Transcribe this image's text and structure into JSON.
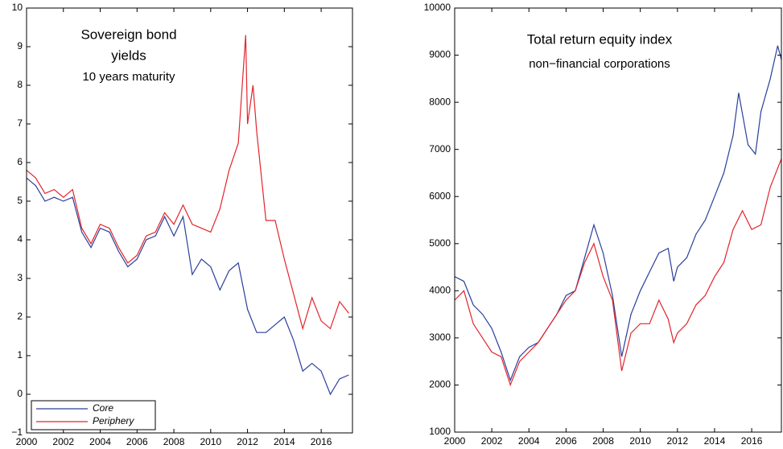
{
  "chart_data": [
    {
      "type": "line",
      "title": [
        "Sovereign bond",
        "yields",
        "10 years maturity"
      ],
      "xlim": [
        2000,
        2017.7
      ],
      "xticks": [
        2000,
        2002,
        2004,
        2006,
        2008,
        2010,
        2012,
        2014,
        2016
      ],
      "ylim": [
        -1,
        10
      ],
      "yticks": [
        {
          "value": -1,
          "label": "−1"
        },
        0,
        1,
        2,
        3,
        4,
        5,
        6,
        7,
        8,
        9,
        10
      ],
      "legend": "lower left",
      "series": [
        {
          "name": "Core",
          "color": "#2a3f9a",
          "x": [
            2000,
            2000.5,
            2001,
            2001.5,
            2002,
            2002.5,
            2003,
            2003.5,
            2004,
            2004.5,
            2005,
            2005.5,
            2006,
            2006.5,
            2007,
            2007.5,
            2008,
            2008.5,
            2009,
            2009.5,
            2010,
            2010.5,
            2011,
            2011.5,
            2012,
            2012.5,
            2013,
            2013.5,
            2014,
            2014.5,
            2015,
            2015.5,
            2016,
            2016.5,
            2017,
            2017.5
          ],
          "values": [
            5.6,
            5.4,
            5.0,
            5.1,
            5.0,
            5.1,
            4.2,
            3.8,
            4.3,
            4.2,
            3.7,
            3.3,
            3.5,
            4.0,
            4.1,
            4.6,
            4.1,
            4.6,
            3.1,
            3.5,
            3.3,
            2.7,
            3.2,
            3.4,
            2.2,
            1.6,
            1.6,
            1.8,
            2.0,
            1.4,
            0.6,
            0.8,
            0.6,
            0.0,
            0.4,
            0.5
          ]
        },
        {
          "name": "Periphery",
          "color": "#e3242b",
          "x": [
            2000,
            2000.5,
            2001,
            2001.5,
            2002,
            2002.5,
            2003,
            2003.5,
            2004,
            2004.5,
            2005,
            2005.5,
            2006,
            2006.5,
            2007,
            2007.5,
            2008,
            2008.5,
            2009,
            2009.5,
            2010,
            2010.5,
            2011,
            2011.5,
            2011.9,
            2012,
            2012.3,
            2012.5,
            2013,
            2013.5,
            2014,
            2014.5,
            2015,
            2015.5,
            2016,
            2016.5,
            2017,
            2017.5
          ],
          "values": [
            5.8,
            5.6,
            5.2,
            5.3,
            5.1,
            5.3,
            4.3,
            3.9,
            4.4,
            4.3,
            3.8,
            3.4,
            3.6,
            4.1,
            4.2,
            4.7,
            4.4,
            4.9,
            4.4,
            4.3,
            4.2,
            4.8,
            5.8,
            6.5,
            9.3,
            7.0,
            8.0,
            6.8,
            4.5,
            4.5,
            3.5,
            2.6,
            1.7,
            2.5,
            1.9,
            1.7,
            2.4,
            2.1
          ]
        }
      ]
    },
    {
      "type": "line",
      "title": "Total return equity index",
      "subtitle": "non−financial corporations",
      "xlim": [
        2000,
        2017.6
      ],
      "xticks": [
        2000,
        2002,
        2004,
        2006,
        2008,
        2010,
        2012,
        2014,
        2016
      ],
      "ylim": [
        1000,
        10000
      ],
      "yticks": [
        1000,
        2000,
        3000,
        4000,
        5000,
        6000,
        7000,
        8000,
        9000,
        10000
      ],
      "series": [
        {
          "color": "#2a3f9a",
          "x": [
            2000,
            2000.5,
            2001,
            2001.5,
            2002,
            2002.5,
            2003,
            2003.5,
            2004,
            2004.5,
            2005,
            2005.5,
            2006,
            2006.5,
            2007,
            2007.5,
            2008,
            2008.5,
            2009,
            2009.5,
            2010,
            2010.5,
            2011,
            2011.5,
            2011.8,
            2012,
            2012.5,
            2013,
            2013.5,
            2014,
            2014.5,
            2015,
            2015.3,
            2015.8,
            2016.2,
            2016.5,
            2017,
            2017.4,
            2017.6
          ],
          "values": [
            4300,
            4200,
            3700,
            3500,
            3200,
            2700,
            2100,
            2600,
            2800,
            2900,
            3200,
            3500,
            3900,
            4000,
            4700,
            5400,
            4800,
            3900,
            2600,
            3500,
            4000,
            4400,
            4800,
            4900,
            4200,
            4500,
            4700,
            5200,
            5500,
            6000,
            6500,
            7300,
            8200,
            7100,
            6900,
            7800,
            8500,
            9200,
            8900
          ]
        },
        {
          "color": "#e3242b",
          "x": [
            2000,
            2000.5,
            2001,
            2001.5,
            2002,
            2002.5,
            2003,
            2003.5,
            2004,
            2004.5,
            2005,
            2005.5,
            2006,
            2006.5,
            2007,
            2007.5,
            2008,
            2008.5,
            2009,
            2009.5,
            2010,
            2010.5,
            2011,
            2011.5,
            2011.8,
            2012,
            2012.5,
            2013,
            2013.5,
            2014,
            2014.5,
            2015,
            2015.5,
            2016,
            2016.5,
            2017,
            2017.6
          ],
          "values": [
            3800,
            4000,
            3300,
            3000,
            2700,
            2600,
            2000,
            2500,
            2700,
            2900,
            3200,
            3500,
            3800,
            4000,
            4600,
            5000,
            4300,
            3800,
            2300,
            3100,
            3300,
            3300,
            3800,
            3400,
            2900,
            3100,
            3300,
            3700,
            3900,
            4300,
            4600,
            5300,
            5700,
            5300,
            5400,
            6200,
            6800
          ]
        }
      ]
    }
  ]
}
